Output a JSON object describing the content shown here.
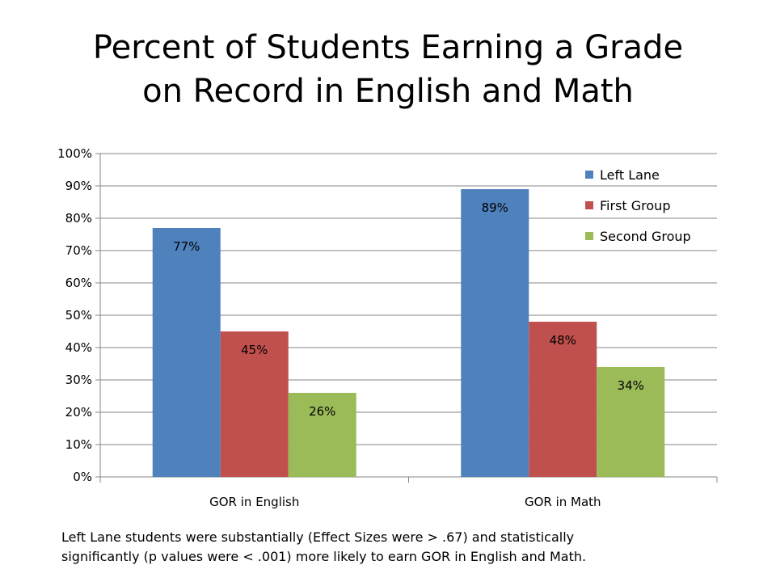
{
  "title": {
    "line1": "Percent of Students Earning a Grade",
    "line2": "on Record in English and Math"
  },
  "footnote": {
    "line1": "Left Lane students were substantially (Effect Sizes were > .67) and statistically",
    "line2": "significantly (p values were < .001) more likely to earn GOR in English and Math."
  },
  "chart_data": {
    "type": "bar",
    "categories": [
      "GOR in English",
      "GOR in Math"
    ],
    "series": [
      {
        "name": "Left Lane",
        "values": [
          77,
          89
        ],
        "labels": [
          "77%",
          "89%"
        ],
        "color": "#4F81BD"
      },
      {
        "name": "First Group",
        "values": [
          45,
          48
        ],
        "labels": [
          "45%",
          "48%"
        ],
        "color": "#C0504D"
      },
      {
        "name": "Second Group",
        "values": [
          26,
          34
        ],
        "labels": [
          "26%",
          "34%"
        ],
        "color": "#9BBB59"
      }
    ],
    "ylim": [
      0,
      100
    ],
    "yticks": [
      0,
      10,
      20,
      30,
      40,
      50,
      60,
      70,
      80,
      90,
      100
    ],
    "ytick_labels": [
      "0%",
      "10%",
      "20%",
      "30%",
      "40%",
      "50%",
      "60%",
      "70%",
      "80%",
      "90%",
      "100%"
    ],
    "grid": true,
    "legend": "top-right",
    "title": "Percent of Students Earning a Grade on Record in English and Math",
    "xlabel": "",
    "ylabel": ""
  }
}
